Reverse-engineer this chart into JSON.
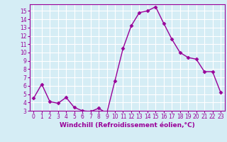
{
  "x": [
    0,
    1,
    2,
    3,
    4,
    5,
    6,
    7,
    8,
    9,
    10,
    11,
    12,
    13,
    14,
    15,
    16,
    17,
    18,
    19,
    20,
    21,
    22,
    23
  ],
  "y": [
    4.5,
    6.2,
    4.1,
    3.9,
    4.6,
    3.4,
    3.0,
    2.9,
    3.3,
    2.7,
    6.6,
    10.5,
    13.2,
    14.8,
    15.0,
    15.5,
    13.5,
    11.6,
    10.0,
    9.4,
    9.2,
    7.7,
    7.7,
    5.2
  ],
  "line_color": "#990099",
  "marker": "D",
  "markersize": 2.5,
  "linewidth": 1.0,
  "bg_color": "#d5edf5",
  "grid_color": "#ffffff",
  "xlabel": "Windchill (Refroidissement éolien,°C)",
  "xlabel_fontsize": 6.5,
  "tick_fontsize": 5.5,
  "ylim": [
    3,
    15.8
  ],
  "xlim": [
    -0.5,
    23.5
  ],
  "yticks": [
    3,
    4,
    5,
    6,
    7,
    8,
    9,
    10,
    11,
    12,
    13,
    14,
    15
  ],
  "xticks": [
    0,
    1,
    2,
    3,
    4,
    5,
    6,
    7,
    8,
    9,
    10,
    11,
    12,
    13,
    14,
    15,
    16,
    17,
    18,
    19,
    20,
    21,
    22,
    23
  ]
}
